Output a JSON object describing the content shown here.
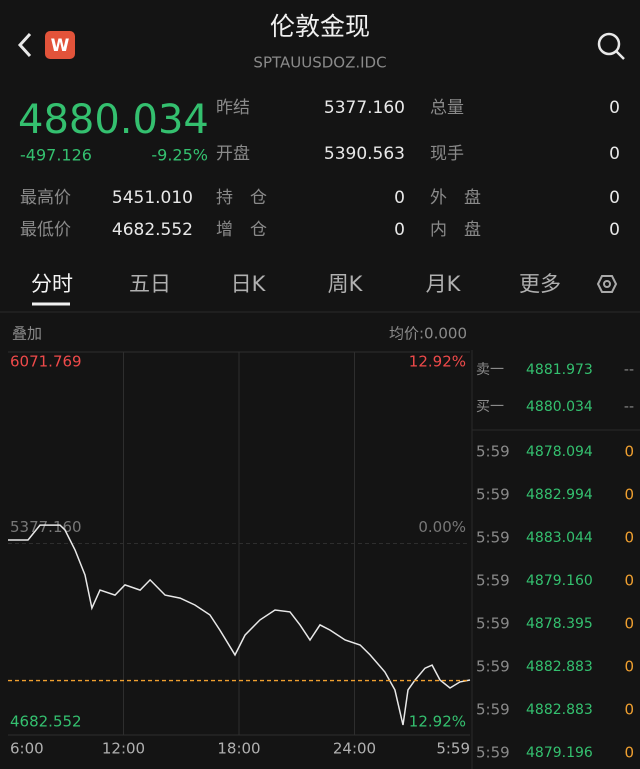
{
  "header": {
    "title": "伦敦金现",
    "subtitle": "SPTAUUSDOZ.IDC",
    "app_icon": "W"
  },
  "quote": {
    "price": 4880.034,
    "change": "-497.126",
    "change_pct": "-9.25%"
  },
  "stats": [
    [
      {
        "label": "昨结",
        "value": "5377.160"
      },
      {
        "label": "总量",
        "value": "0"
      }
    ],
    [
      {
        "label": "开盘",
        "value": "5390.563"
      },
      {
        "label": "现手",
        "value": "0"
      }
    ],
    [
      {
        "label": "最高价",
        "value": "5451.010"
      },
      {
        "label": "持　仓",
        "value": "0"
      },
      {
        "label": "外　盘",
        "value": "0"
      }
    ],
    [
      {
        "label": "最低价",
        "value": "4682.552"
      },
      {
        "label": "增　仓",
        "value": "0"
      },
      {
        "label": "内　盘",
        "value": "0"
      }
    ]
  ],
  "tabs": [
    "分时",
    "五日",
    "日K",
    "周K",
    "月K",
    "更多"
  ],
  "chart_header": {
    "overlay": "叠加",
    "avg_price": "均价:0.000"
  },
  "chart_data": {
    "type": "line",
    "x": [
      0,
      1.04,
      1.66,
      2.7,
      2.96,
      3.48,
      4.0,
      4.36,
      4.78,
      5.56,
      6.08,
      6.86,
      7.38,
      8.16,
      8.94,
      9.71,
      10.49,
      11.01,
      11.79,
      12.31,
      13.09,
      13.87,
      14.65,
      15.17,
      15.69,
      16.21,
      16.73,
      17.51,
      18.29,
      18.81,
      19.58,
      20.1,
      20.52,
      20.78,
      21.15,
      21.66,
      22.03,
      22.44,
      22.96,
      23.48,
      24
    ],
    "values": [
      5390,
      5390,
      5444,
      5444,
      5426,
      5354,
      5263,
      5143,
      5208,
      5190,
      5227,
      5208,
      5245,
      5190,
      5179,
      5154,
      5118,
      5063,
      4973,
      5045,
      5100,
      5136,
      5129,
      5082,
      5027,
      5082,
      5063,
      5027,
      5009,
      4973,
      4911,
      4846,
      4719,
      4846,
      4882,
      4925,
      4936,
      4882,
      4853,
      4875,
      4882
    ],
    "color": "#e8e8e8",
    "xlim": [
      0,
      24
    ],
    "xticks": [
      {
        "value": 0,
        "label": "6:00"
      },
      {
        "value": 6,
        "label": "12:00"
      },
      {
        "value": 12,
        "label": "18:00"
      },
      {
        "value": 18,
        "label": "24:00"
      },
      {
        "value": 24,
        "label": "5:59"
      }
    ],
    "ylim": [
      4682.552,
      6071.769
    ],
    "yticks": [
      6071.769,
      {
        "value": 5377.16,
        "label": "5377.160"
      },
      4682.552
    ],
    "y2lim": [
      -12.92,
      12.92
    ],
    "y2ticks": [
      {
        "value": 12.92,
        "label": "12.92%"
      },
      {
        "value": 0,
        "label": "0.00%"
      },
      {
        "value": -12.92,
        "label": "12.92%"
      }
    ],
    "grid": true
  },
  "order_book": [
    {
      "side": "卖一",
      "price": "4881.973",
      "volume": "--"
    },
    {
      "side": "买一",
      "price": "4880.034",
      "volume": "--"
    }
  ],
  "trades": [
    {
      "time": "5:59",
      "price": "4878.094",
      "volume": "0"
    },
    {
      "time": "5:59",
      "price": "4882.994",
      "volume": "0"
    },
    {
      "time": "5:59",
      "price": "4883.044",
      "volume": "0"
    },
    {
      "time": "5:59",
      "price": "4879.160",
      "volume": "0"
    },
    {
      "time": "5:59",
      "price": "4878.395",
      "volume": "0"
    },
    {
      "time": "5:59",
      "price": "4882.883",
      "volume": "0"
    },
    {
      "time": "5:59",
      "price": "4882.883",
      "volume": "0"
    },
    {
      "time": "5:59",
      "price": "4879.196",
      "volume": "0"
    }
  ]
}
